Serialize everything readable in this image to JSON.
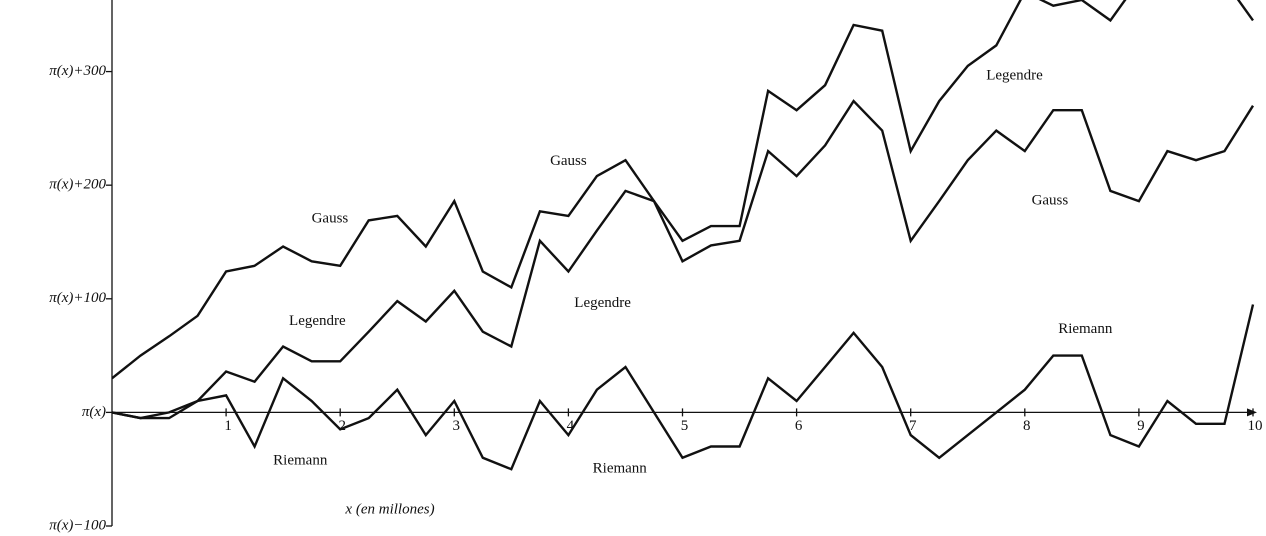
{
  "chart_data": {
    "type": "line",
    "x_label": "x (en millones)",
    "x": [
      0,
      0.25,
      0.5,
      0.75,
      1,
      1.25,
      1.5,
      1.75,
      2,
      2.25,
      2.5,
      2.75,
      3,
      3.25,
      3.5,
      3.75,
      4,
      4.25,
      4.5,
      4.75,
      5,
      5.25,
      5.5,
      5.75,
      6,
      6.25,
      6.5,
      6.75,
      7,
      7.25,
      7.5,
      7.75,
      8,
      8.25,
      8.5,
      8.75,
      9,
      9.25,
      9.5,
      9.75,
      10
    ],
    "series": [
      {
        "name": "Gauss",
        "color": "#111111",
        "values": [
          30,
          50,
          67,
          85,
          124,
          129,
          146,
          133,
          129,
          169,
          173,
          146,
          186,
          124,
          110,
          177,
          173,
          208,
          222,
          186,
          133,
          147,
          151,
          230,
          208,
          235,
          274,
          248,
          151,
          186,
          222,
          248,
          230,
          266,
          266,
          195,
          186,
          230,
          222,
          230,
          270
        ]
      },
      {
        "name": "Legendre",
        "color": "#111111",
        "values": [
          0,
          -5,
          0,
          10,
          36,
          27,
          58,
          45,
          45,
          71,
          98,
          80,
          107,
          71,
          58,
          151,
          124,
          160,
          195,
          186,
          151,
          164,
          164,
          283,
          266,
          288,
          341,
          336,
          230,
          274,
          305,
          323,
          370,
          358,
          363,
          345,
          380,
          385,
          380,
          380,
          345
        ]
      },
      {
        "name": "Riemann",
        "color": "#111111",
        "values": [
          0,
          -5,
          -5,
          10,
          15,
          -30,
          30,
          10,
          -15,
          -5,
          20,
          -20,
          10,
          -40,
          -50,
          10,
          -20,
          20,
          40,
          0,
          -40,
          -30,
          -30,
          30,
          10,
          40,
          70,
          40,
          -20,
          -40,
          -20,
          0,
          20,
          50,
          50,
          -20,
          -30,
          10,
          -10,
          -10,
          95
        ]
      }
    ],
    "annotations": [
      {
        "text": "Gauss",
        "x": 1.91,
        "y": 170
      },
      {
        "text": "Legendre",
        "x": 1.8,
        "y": 80
      },
      {
        "text": "Riemann",
        "x": 1.65,
        "y": -43
      },
      {
        "text": "Gauss",
        "x": 4.0,
        "y": 221
      },
      {
        "text": "Legendre",
        "x": 4.3,
        "y": 96
      },
      {
        "text": "Riemann",
        "x": 4.45,
        "y": -50
      },
      {
        "text": "Legendre",
        "x": 7.91,
        "y": 296
      },
      {
        "text": "Gauss",
        "x": 8.22,
        "y": 186
      },
      {
        "text": "Riemann",
        "x": 8.53,
        "y": 73
      }
    ],
    "xlim": [
      0,
      10
    ],
    "ylim": [
      -100,
      363
    ],
    "xticks": [
      1,
      2,
      3,
      4,
      5,
      6,
      7,
      8,
      9,
      10
    ],
    "yticks": [
      {
        "value": -100,
        "label": "π(x)−100"
      },
      {
        "value": 0,
        "label": "π(x)"
      },
      {
        "value": 100,
        "label": "π(x)+100"
      },
      {
        "value": 200,
        "label": "π(x)+200"
      },
      {
        "value": 300,
        "label": "π(x)+300"
      }
    ]
  }
}
